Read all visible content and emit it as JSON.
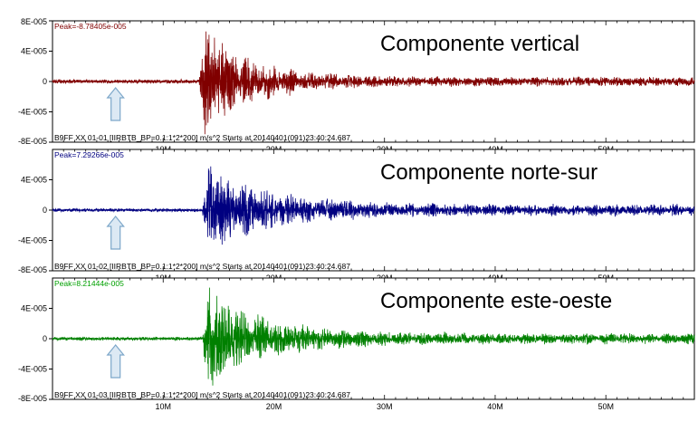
{
  "chart_data": [
    {
      "type": "line",
      "title": "Componente vertical",
      "peak_label": "Peak=-8.78405e-005",
      "footer_label": "B9FF XX 01-01   [IIRBTB_BP=0.1:1*2*200]  m/s^2  Starts at 20140401(091)23:40:24.687",
      "color": "#800000",
      "peak_color": "#800000",
      "peak": -8.78405e-05,
      "y_ticks": [
        8e-05,
        4e-05,
        0,
        -4e-05,
        -8e-05
      ],
      "y_tick_labels": [
        "8E-005",
        "4E-005",
        "0",
        "-4E-005",
        "-8E-005"
      ],
      "ylim": [
        -8e-05,
        8e-05
      ],
      "arrival_minute": 13.2,
      "noise_level": 3e-06,
      "decay_minutes": 13,
      "late_level": 0.08
    },
    {
      "type": "line",
      "title": "Componente norte-sur",
      "peak_label": "Peak=7.29266e-005",
      "footer_label": "B9FF XX 01-02   [IIRBTB_BP=0.1:1*2*200]  m/s^2  Starts at 20140401(091)23:40:24.687",
      "color": "#000080",
      "peak_color": "#000080",
      "peak": 7.29266e-05,
      "y_ticks": [
        4e-05,
        0,
        -4e-05,
        -8e-05
      ],
      "y_tick_labels": [
        "4E-005",
        "0",
        "-4E-005",
        "-8E-005"
      ],
      "ylim": [
        -8e-05,
        8e-05
      ],
      "arrival_minute": 13.5,
      "noise_level": 2.5e-06,
      "decay_minutes": 16,
      "late_level": 0.12
    },
    {
      "type": "line",
      "title": "Componente este-oeste",
      "peak_label": "Peak=8.21444e-005",
      "footer_label": "B9FF XX 01-03   [IIRBTB_BP=0.1:1*2*200]  m/s^2  Starts at 20140401(091)23:40:24.687",
      "color": "#008000",
      "peak_color": "#00a000",
      "peak": 8.21444e-05,
      "y_ticks": [
        4e-05,
        0,
        -4e-05,
        -8e-05
      ],
      "y_tick_labels": [
        "4E-005",
        "0",
        "-4E-005",
        "-8E-005"
      ],
      "ylim": [
        -8e-05,
        8e-05
      ],
      "arrival_minute": 13.5,
      "noise_level": 2.5e-06,
      "decay_minutes": 15,
      "late_level": 0.1
    }
  ],
  "x_axis": {
    "xlim": [
      0,
      58
    ],
    "major_ticks": [
      10,
      20,
      30,
      40,
      50
    ],
    "major_tick_labels": [
      "10M",
      "20M",
      "30M",
      "40M",
      "50M"
    ],
    "minor_step": 1
  },
  "arrow_marker": {
    "minute": 5.7,
    "color": "#7da7c9",
    "fill": "#dce9f4"
  }
}
